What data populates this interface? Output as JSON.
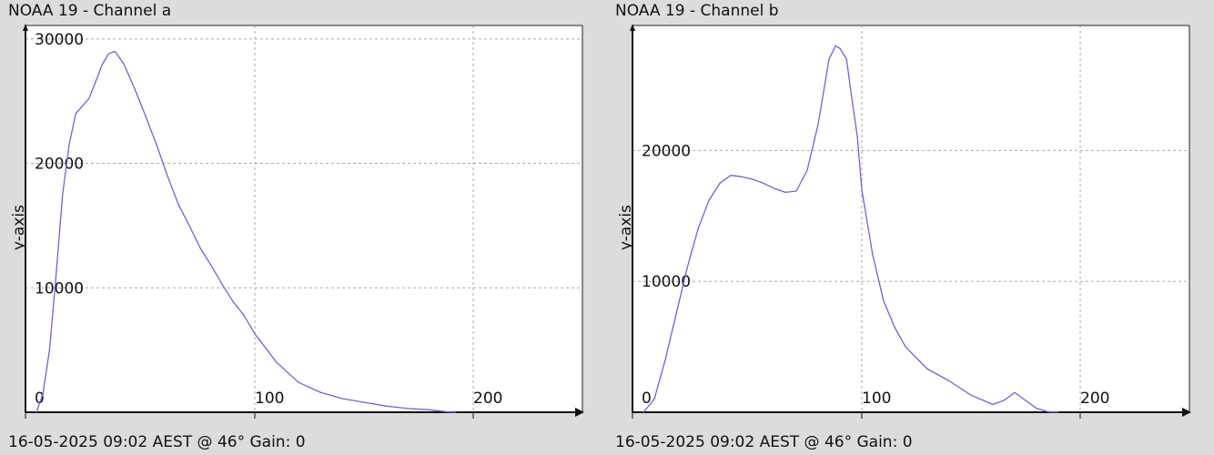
{
  "chart_data": [
    {
      "type": "line",
      "title": "NOAA 19 - Channel a",
      "ylabel": "y-axis",
      "xlabel": "",
      "footer": "16-05-2025 09:02 AEST @ 46° Gain: 0",
      "xlim": [
        0,
        250
      ],
      "ylim": [
        0,
        30500
      ],
      "xticks": [
        0,
        100,
        200
      ],
      "yticks": [
        10000,
        20000,
        30000
      ],
      "grid": true,
      "color": "#6666dd",
      "x": [
        0,
        3,
        6,
        9,
        12,
        15,
        18,
        21,
        24,
        27,
        30,
        33,
        36,
        40,
        45,
        50,
        55,
        60,
        65,
        70,
        75,
        80,
        85,
        90,
        95,
        100,
        110,
        120,
        130,
        140,
        150,
        160,
        170,
        180,
        190,
        192
      ],
      "y": [
        0,
        1500,
        5000,
        11000,
        17500,
        21500,
        24000,
        24600,
        25200,
        26500,
        27900,
        28800,
        29000,
        28000,
        26000,
        23800,
        21500,
        19000,
        16700,
        15000,
        13200,
        11800,
        10300,
        8900,
        7800,
        6300,
        4000,
        2400,
        1600,
        1100,
        800,
        500,
        300,
        200,
        0,
        0
      ]
    },
    {
      "type": "line",
      "title": "NOAA 19 - Channel b",
      "ylabel": "y-axis",
      "xlabel": "",
      "footer": "16-05-2025 09:02 AEST @ 46° Gain: 0",
      "xlim": [
        0,
        250
      ],
      "ylim": [
        0,
        29000
      ],
      "xticks": [
        0,
        100,
        200
      ],
      "yticks": [
        10000,
        20000
      ],
      "grid": true,
      "color": "#6666dd",
      "x": [
        0,
        5,
        10,
        15,
        20,
        25,
        30,
        35,
        40,
        45,
        50,
        55,
        60,
        65,
        70,
        75,
        80,
        85,
        88,
        90,
        93,
        95,
        98,
        100,
        105,
        110,
        115,
        120,
        130,
        140,
        150,
        160,
        165,
        170,
        175,
        180,
        185,
        190
      ],
      "y": [
        0,
        1000,
        4000,
        7500,
        11000,
        14000,
        16200,
        17500,
        18100,
        18000,
        17800,
        17500,
        17100,
        16800,
        16900,
        18500,
        22000,
        27000,
        28000,
        27800,
        27000,
        24500,
        21000,
        17000,
        12000,
        8500,
        6500,
        5000,
        3300,
        2400,
        1300,
        600,
        900,
        1500,
        900,
        300,
        50,
        0
      ]
    }
  ]
}
